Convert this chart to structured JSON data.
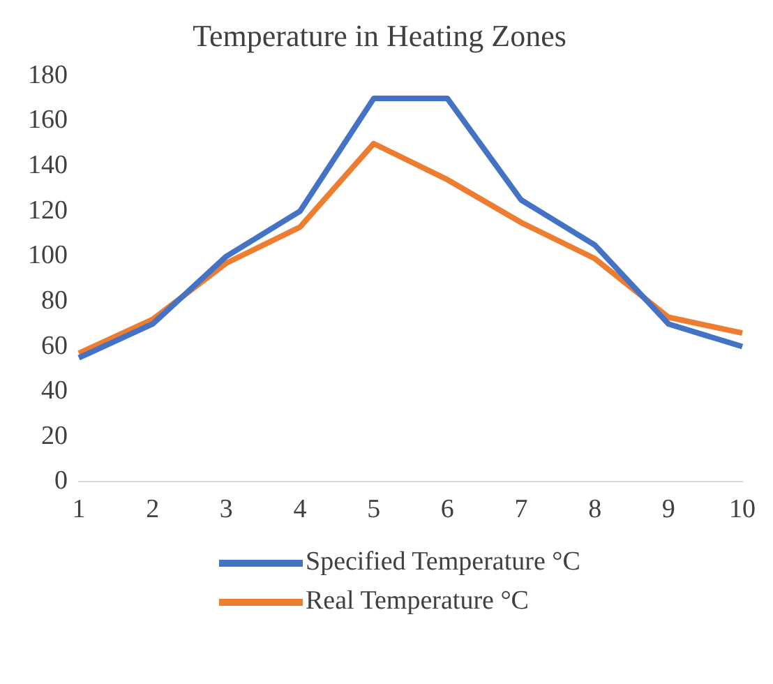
{
  "chart_data": {
    "type": "line",
    "title": "Temperature in Heating Zones",
    "categories": [
      "1",
      "2",
      "3",
      "4",
      "5",
      "6",
      "7",
      "8",
      "9",
      "10"
    ],
    "series": [
      {
        "name": "Specified Temperature °C",
        "color": "#4472c4",
        "values": [
          55,
          70,
          100,
          120,
          170,
          170,
          125,
          105,
          70,
          60
        ]
      },
      {
        "name": "Real Temperature °C",
        "color": "#ed7d31",
        "values": [
          57,
          72,
          97,
          113,
          150,
          134,
          115,
          99,
          73,
          66
        ]
      }
    ],
    "ylim": [
      0,
      180
    ],
    "yticks": [
      0,
      20,
      40,
      60,
      80,
      100,
      120,
      140,
      160,
      180
    ],
    "grid": false,
    "legend": "bottom",
    "marker": "none",
    "line_style": "solid"
  }
}
